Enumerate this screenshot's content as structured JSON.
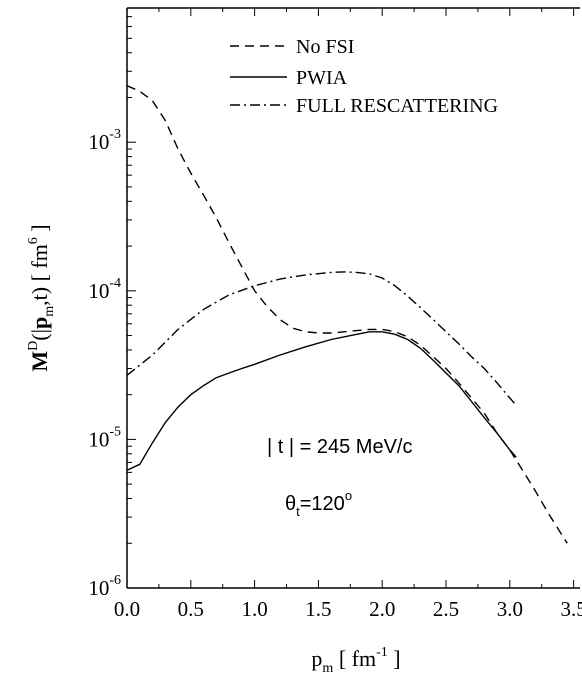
{
  "chart_data": {
    "type": "line",
    "title": "",
    "xlabel": {
      "main": "p",
      "sub": "m",
      "unit_open": " [ fm",
      "unit_sup": "-1",
      "unit_close": " ]"
    },
    "ylabel": {
      "main": "M",
      "sup": "D",
      "args_open": "(|",
      "bold_p": "p",
      "sub": "m",
      "args_close": ",t) [ fm",
      "unit_sup": "6",
      "unit_close": " ]"
    },
    "xlim": [
      0.0,
      3.55
    ],
    "ylim": [
      1e-06,
      0.008
    ],
    "yscale": "log",
    "x_ticks": [
      "0.0",
      "0.5",
      "1.0",
      "1.5",
      "2.0",
      "2.5",
      "3.0",
      "3.5"
    ],
    "y_ticks": [
      {
        "base": "10",
        "exp": "-6",
        "value": 1e-06
      },
      {
        "base": "10",
        "exp": "-5",
        "value": 1e-05
      },
      {
        "base": "10",
        "exp": "-4",
        "value": 0.0001
      },
      {
        "base": "10",
        "exp": "-3",
        "value": 0.001
      }
    ],
    "legend_position": "top-center",
    "series": [
      {
        "name": "No FSI",
        "style": "dashed",
        "x": [
          0.0,
          0.1,
          0.2,
          0.3,
          0.4,
          0.5,
          0.6,
          0.7,
          0.8,
          0.9,
          1.0,
          1.1,
          1.2,
          1.3,
          1.4,
          1.5,
          1.6,
          1.7,
          1.8,
          1.9,
          2.0,
          2.1,
          2.2,
          2.3,
          2.4,
          2.5,
          2.6,
          2.7,
          2.8,
          2.9,
          3.0,
          3.1,
          3.2,
          3.3,
          3.45
        ],
        "values": [
          0.0024,
          0.0022,
          0.0019,
          0.0014,
          0.0009,
          0.00062,
          0.00044,
          0.00031,
          0.00021,
          0.000145,
          0.0001,
          7.8e-05,
          6.4e-05,
          5.6e-05,
          5.3e-05,
          5.2e-05,
          5.2e-05,
          5.3e-05,
          5.4e-05,
          5.5e-05,
          5.5e-05,
          5.3e-05,
          4.9e-05,
          4.3e-05,
          3.6e-05,
          3e-05,
          2.4e-05,
          1.9e-05,
          1.5e-05,
          1.1e-05,
          8.5e-06,
          6.2e-06,
          4.5e-06,
          3.2e-06,
          2e-06
        ]
      },
      {
        "name": "PWIA",
        "style": "solid",
        "x": [
          0.0,
          0.1,
          0.2,
          0.3,
          0.4,
          0.5,
          0.6,
          0.7,
          0.8,
          0.9,
          1.0,
          1.2,
          1.4,
          1.6,
          1.8,
          1.9,
          2.0,
          2.1,
          2.2,
          2.3,
          2.4,
          2.5,
          2.6,
          2.7,
          2.8,
          2.9,
          3.0,
          3.05
        ],
        "values": [
          6.2e-06,
          6.8e-06,
          9.5e-06,
          1.3e-05,
          1.65e-05,
          2e-05,
          2.3e-05,
          2.6e-05,
          2.8e-05,
          3e-05,
          3.2e-05,
          3.7e-05,
          4.2e-05,
          4.7e-05,
          5.1e-05,
          5.3e-05,
          5.3e-05,
          5.1e-05,
          4.7e-05,
          4.1e-05,
          3.4e-05,
          2.8e-05,
          2.3e-05,
          1.8e-05,
          1.4e-05,
          1.1e-05,
          8.5e-06,
          7.6e-06
        ]
      },
      {
        "name": "FULL RESCATTERING",
        "style": "dashdot",
        "x": [
          0.0,
          0.2,
          0.4,
          0.6,
          0.8,
          1.0,
          1.2,
          1.4,
          1.6,
          1.7,
          1.8,
          1.9,
          2.0,
          2.1,
          2.2,
          2.3,
          2.4,
          2.5,
          2.6,
          2.7,
          2.8,
          2.9,
          3.0,
          3.05
        ],
        "values": [
          2.7e-05,
          3.7e-05,
          5.5e-05,
          7.5e-05,
          9.4e-05,
          0.000108,
          0.00012,
          0.000128,
          0.000133,
          0.000134,
          0.000133,
          0.00013,
          0.000122,
          0.000108,
          9.2e-05,
          7.7e-05,
          6.4e-05,
          5.3e-05,
          4.4e-05,
          3.6e-05,
          3e-05,
          2.4e-05,
          1.9e-05,
          1.7e-05
        ]
      }
    ],
    "annotations": [
      {
        "text": "| t | = 245 MeV/c",
        "style": "sans"
      },
      {
        "symbol": "θ",
        "sub": "t",
        "text": "=120",
        "sup": "o",
        "style": "sans"
      }
    ]
  }
}
